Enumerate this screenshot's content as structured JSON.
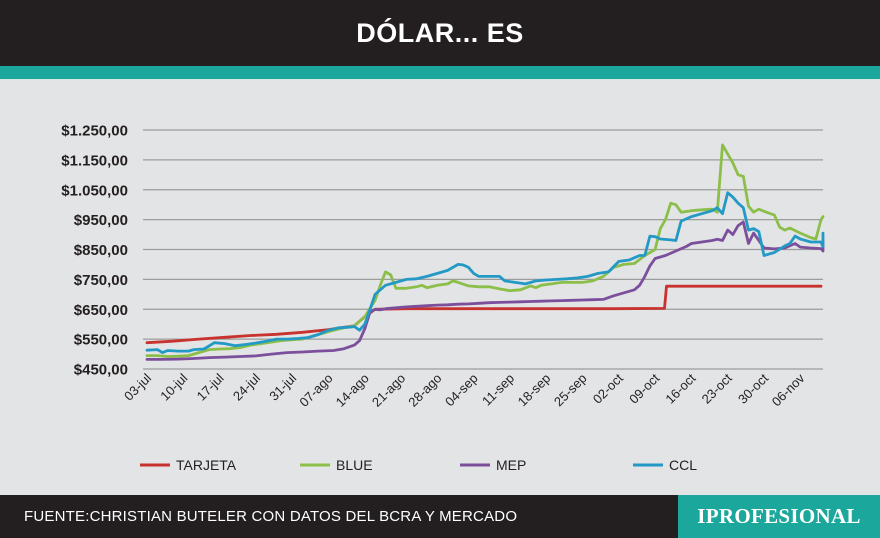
{
  "header": {
    "title": "DÓLAR... ES"
  },
  "footer": {
    "source": "FUENTE:CHRISTIAN BUTELER CON DATOS DEL BCRA Y MERCADO",
    "brand": "IPROFESIONAL"
  },
  "colors": {
    "header_bg": "#231f20",
    "accent_teal": "#1ba79b",
    "plot_bg": "#e3e4e5",
    "grid": "#9c9c9c"
  },
  "chart_data": {
    "type": "line",
    "title": "DÓLAR... ES",
    "xlabel": "",
    "ylabel": "",
    "ylim": [
      450,
      1250
    ],
    "yticks": [
      {
        "value": 1250,
        "label": "$1.250,00"
      },
      {
        "value": 1150,
        "label": "$1.150,00"
      },
      {
        "value": 1050,
        "label": "$1.050,00"
      },
      {
        "value": 950,
        "label": "$950,00"
      },
      {
        "value": 850,
        "label": "$850,00"
      },
      {
        "value": 750,
        "label": "$750,00"
      },
      {
        "value": 650,
        "label": "$650,00"
      },
      {
        "value": 550,
        "label": "$550,00"
      },
      {
        "value": 450,
        "label": "$450,00"
      }
    ],
    "xlim": [
      0,
      130
    ],
    "xticks": [
      {
        "day": 0,
        "label": "03-jul"
      },
      {
        "day": 7,
        "label": "10-jul"
      },
      {
        "day": 14,
        "label": "17-jul"
      },
      {
        "day": 21,
        "label": "24-jul"
      },
      {
        "day": 28,
        "label": "31-jul"
      },
      {
        "day": 35,
        "label": "07-ago"
      },
      {
        "day": 42,
        "label": "14-ago"
      },
      {
        "day": 49,
        "label": "21-ago"
      },
      {
        "day": 56,
        "label": "28-ago"
      },
      {
        "day": 63,
        "label": "04-sep"
      },
      {
        "day": 70,
        "label": "11-sep"
      },
      {
        "day": 77,
        "label": "18-sep"
      },
      {
        "day": 84,
        "label": "25-sep"
      },
      {
        "day": 91,
        "label": "02-oct"
      },
      {
        "day": 98,
        "label": "09-oct"
      },
      {
        "day": 105,
        "label": "16-oct"
      },
      {
        "day": 112,
        "label": "23-oct"
      },
      {
        "day": 119,
        "label": "30-oct"
      },
      {
        "day": 126,
        "label": "06-nov"
      }
    ],
    "legend_position": "bottom",
    "series": [
      {
        "name": "TARJETA",
        "color": "#c8322f",
        "points": [
          [
            0,
            538
          ],
          [
            5,
            543
          ],
          [
            10,
            550
          ],
          [
            15,
            556
          ],
          [
            20,
            562
          ],
          [
            25,
            566
          ],
          [
            30,
            573
          ],
          [
            35,
            582
          ],
          [
            40,
            595
          ],
          [
            42,
            625
          ],
          [
            44,
            650
          ],
          [
            50,
            652
          ],
          [
            60,
            652
          ],
          [
            70,
            652
          ],
          [
            80,
            652
          ],
          [
            90,
            652
          ],
          [
            99.8,
            653
          ],
          [
            100.2,
            727
          ],
          [
            110,
            727
          ],
          [
            120,
            727
          ],
          [
            130,
            727
          ]
        ]
      },
      {
        "name": "BLUE",
        "color": "#8cbf4a",
        "points": [
          [
            0,
            495
          ],
          [
            2,
            495
          ],
          [
            4,
            492
          ],
          [
            6,
            493
          ],
          [
            8,
            495
          ],
          [
            10,
            505
          ],
          [
            12,
            515
          ],
          [
            14,
            517
          ],
          [
            16,
            518
          ],
          [
            18,
            522
          ],
          [
            20,
            530
          ],
          [
            22,
            535
          ],
          [
            24,
            540
          ],
          [
            26,
            545
          ],
          [
            28,
            548
          ],
          [
            30,
            550
          ],
          [
            32,
            560
          ],
          [
            34,
            570
          ],
          [
            36,
            580
          ],
          [
            38,
            588
          ],
          [
            40,
            595
          ],
          [
            42,
            625
          ],
          [
            44,
            680
          ],
          [
            45,
            730
          ],
          [
            46,
            775
          ],
          [
            47,
            765
          ],
          [
            48,
            720
          ],
          [
            50,
            720
          ],
          [
            52,
            725
          ],
          [
            53,
            730
          ],
          [
            54,
            722
          ],
          [
            56,
            730
          ],
          [
            58,
            735
          ],
          [
            59,
            745
          ],
          [
            60,
            740
          ],
          [
            62,
            728
          ],
          [
            64,
            725
          ],
          [
            66,
            725
          ],
          [
            68,
            718
          ],
          [
            70,
            712
          ],
          [
            72,
            715
          ],
          [
            74,
            728
          ],
          [
            75,
            722
          ],
          [
            76,
            730
          ],
          [
            78,
            735
          ],
          [
            80,
            740
          ],
          [
            82,
            740
          ],
          [
            84,
            740
          ],
          [
            86,
            745
          ],
          [
            88,
            760
          ],
          [
            90,
            790
          ],
          [
            92,
            800
          ],
          [
            94,
            803
          ],
          [
            96,
            830
          ],
          [
            98,
            850
          ],
          [
            99,
            920
          ],
          [
            100,
            950
          ],
          [
            101,
            1005
          ],
          [
            102,
            1000
          ],
          [
            103,
            975
          ],
          [
            105,
            980
          ],
          [
            107,
            983
          ],
          [
            109,
            985
          ],
          [
            110,
            975
          ],
          [
            111,
            1200
          ],
          [
            112,
            1170
          ],
          [
            113,
            1140
          ],
          [
            114,
            1100
          ],
          [
            115,
            1095
          ],
          [
            116,
            995
          ],
          [
            117,
            975
          ],
          [
            118,
            985
          ],
          [
            119,
            978
          ],
          [
            121,
            965
          ],
          [
            122,
            925
          ],
          [
            123,
            915
          ],
          [
            124,
            922
          ],
          [
            126,
            905
          ],
          [
            128,
            890
          ],
          [
            129,
            885
          ],
          [
            130,
            950
          ],
          [
            131,
            960
          ]
        ]
      },
      {
        "name": "MEP",
        "color": "#7c4f9d",
        "points": [
          [
            0,
            482
          ],
          [
            3,
            482
          ],
          [
            6,
            483
          ],
          [
            9,
            485
          ],
          [
            12,
            488
          ],
          [
            15,
            490
          ],
          [
            18,
            492
          ],
          [
            21,
            494
          ],
          [
            24,
            500
          ],
          [
            27,
            505
          ],
          [
            30,
            507
          ],
          [
            33,
            510
          ],
          [
            36,
            512
          ],
          [
            38,
            518
          ],
          [
            40,
            530
          ],
          [
            41,
            545
          ],
          [
            42,
            585
          ],
          [
            43,
            640
          ],
          [
            44,
            650
          ],
          [
            45,
            648
          ],
          [
            46,
            652
          ],
          [
            48,
            655
          ],
          [
            50,
            658
          ],
          [
            52,
            660
          ],
          [
            54,
            662
          ],
          [
            56,
            664
          ],
          [
            58,
            665
          ],
          [
            60,
            667
          ],
          [
            62,
            668
          ],
          [
            64,
            670
          ],
          [
            66,
            672
          ],
          [
            68,
            673
          ],
          [
            70,
            674
          ],
          [
            72,
            675
          ],
          [
            74,
            676
          ],
          [
            76,
            677
          ],
          [
            78,
            678
          ],
          [
            80,
            679
          ],
          [
            82,
            680
          ],
          [
            84,
            681
          ],
          [
            86,
            682
          ],
          [
            88,
            683
          ],
          [
            90,
            695
          ],
          [
            92,
            705
          ],
          [
            94,
            715
          ],
          [
            95,
            730
          ],
          [
            96,
            760
          ],
          [
            97,
            795
          ],
          [
            98,
            820
          ],
          [
            100,
            830
          ],
          [
            102,
            845
          ],
          [
            104,
            860
          ],
          [
            105,
            870
          ],
          [
            107,
            875
          ],
          [
            109,
            880
          ],
          [
            110,
            884
          ],
          [
            111,
            880
          ],
          [
            112,
            915
          ],
          [
            113,
            900
          ],
          [
            114,
            930
          ],
          [
            115,
            942
          ],
          [
            116,
            870
          ],
          [
            117,
            905
          ],
          [
            118,
            880
          ],
          [
            119,
            855
          ],
          [
            121,
            852
          ],
          [
            123,
            855
          ],
          [
            125,
            870
          ],
          [
            126,
            858
          ],
          [
            128,
            855
          ],
          [
            130,
            853
          ],
          [
            131,
            845
          ],
          [
            132,
            870
          ],
          [
            133,
            875
          ]
        ]
      },
      {
        "name": "CCL",
        "color": "#2399c6",
        "points": [
          [
            0,
            513
          ],
          [
            2,
            515
          ],
          [
            3,
            505
          ],
          [
            4,
            512
          ],
          [
            6,
            510
          ],
          [
            8,
            510
          ],
          [
            9,
            515
          ],
          [
            11,
            517
          ],
          [
            13,
            538
          ],
          [
            15,
            535
          ],
          [
            17,
            528
          ],
          [
            19,
            532
          ],
          [
            21,
            537
          ],
          [
            23,
            543
          ],
          [
            25,
            550
          ],
          [
            27,
            550
          ],
          [
            29,
            552
          ],
          [
            31,
            555
          ],
          [
            33,
            565
          ],
          [
            35,
            580
          ],
          [
            37,
            588
          ],
          [
            39,
            590
          ],
          [
            40,
            592
          ],
          [
            41,
            580
          ],
          [
            42,
            600
          ],
          [
            43,
            650
          ],
          [
            44,
            700
          ],
          [
            46,
            730
          ],
          [
            48,
            740
          ],
          [
            50,
            750
          ],
          [
            52,
            752
          ],
          [
            54,
            760
          ],
          [
            56,
            770
          ],
          [
            58,
            780
          ],
          [
            60,
            800
          ],
          [
            61,
            798
          ],
          [
            62,
            790
          ],
          [
            63,
            770
          ],
          [
            64,
            760
          ],
          [
            66,
            760
          ],
          [
            68,
            760
          ],
          [
            69,
            745
          ],
          [
            71,
            740
          ],
          [
            73,
            735
          ],
          [
            75,
            745
          ],
          [
            77,
            748
          ],
          [
            79,
            750
          ],
          [
            81,
            752
          ],
          [
            83,
            755
          ],
          [
            85,
            760
          ],
          [
            87,
            770
          ],
          [
            89,
            775
          ],
          [
            91,
            810
          ],
          [
            93,
            815
          ],
          [
            95,
            830
          ],
          [
            96,
            830
          ],
          [
            97,
            895
          ],
          [
            98,
            893
          ],
          [
            99,
            885
          ],
          [
            101,
            882
          ],
          [
            102,
            880
          ],
          [
            103,
            945
          ],
          [
            105,
            960
          ],
          [
            107,
            970
          ],
          [
            109,
            980
          ],
          [
            110,
            990
          ],
          [
            111,
            970
          ],
          [
            112,
            1040
          ],
          [
            113,
            1025
          ],
          [
            114,
            1005
          ],
          [
            115,
            990
          ],
          [
            116,
            915
          ],
          [
            117,
            920
          ],
          [
            118,
            910
          ],
          [
            119,
            830
          ],
          [
            121,
            840
          ],
          [
            123,
            862
          ],
          [
            124,
            870
          ],
          [
            125,
            895
          ],
          [
            126,
            885
          ],
          [
            128,
            875
          ],
          [
            130,
            875
          ],
          [
            132,
            860
          ],
          [
            133,
            865
          ],
          [
            134,
            905
          ]
        ]
      }
    ]
  }
}
